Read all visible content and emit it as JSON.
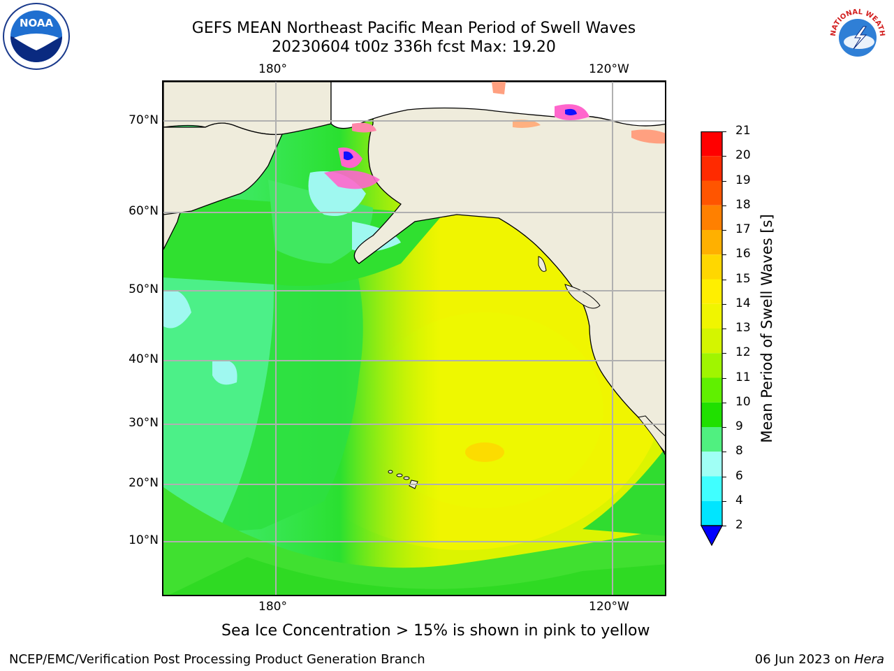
{
  "title_line1": "GEFS MEAN Northeast Pacific Mean Period of Swell Waves",
  "title_line2": "20230604 t00z 336h fcst   Max: 19.20",
  "lon_labels_top": [
    "180°",
    "120°W"
  ],
  "lon_labels_bottom": [
    "180°",
    "120°W"
  ],
  "lat_labels": [
    "70°N",
    "60°N",
    "50°N",
    "40°N",
    "30°N",
    "20°N",
    "10°N"
  ],
  "colorbar": {
    "label": "Mean Period of Swell Waves [s]",
    "ticks": [
      "21",
      "20",
      "19",
      "18",
      "17",
      "16",
      "15",
      "14",
      "13",
      "12",
      "11",
      "10",
      "9",
      "8",
      "6",
      "4",
      "2"
    ],
    "colors": [
      "#ff0000",
      "#ff2a00",
      "#ff5500",
      "#ff8000",
      "#ffb000",
      "#ffd700",
      "#ffef00",
      "#f0f500",
      "#d4f500",
      "#a0f500",
      "#60f000",
      "#20e000",
      "#50f080",
      "#a0fff5",
      "#40ffff",
      "#00e5ff",
      "#0090ff"
    ],
    "extend_color": "#0000ff"
  },
  "ice_note": "Sea Ice Concentration > 15% is shown in pink to yellow",
  "footer_left": "NCEP/EMC/Verification Post Processing Product Generation Branch",
  "footer_right_date": "06 Jun 2023 on ",
  "footer_right_host": "Hera",
  "logos": {
    "left": "NOAA",
    "right": "NATIONAL WEATHER SERVICE"
  }
}
